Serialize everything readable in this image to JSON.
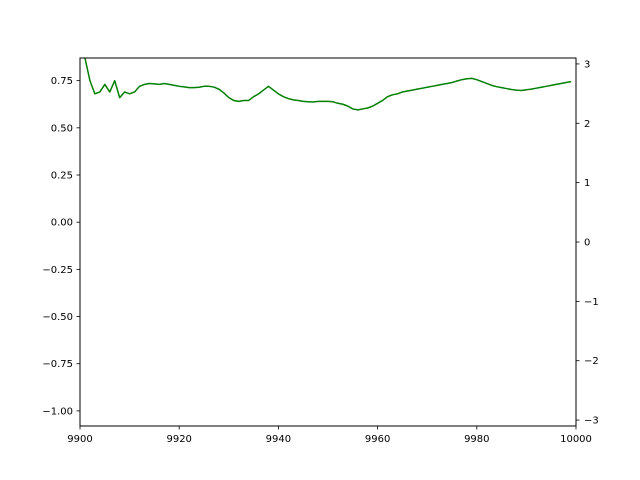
{
  "chart_data": {
    "type": "line",
    "title": "",
    "xlabel": "",
    "ylabel": "",
    "xlim": [
      9900,
      10000
    ],
    "ylim_left": [
      -1.08,
      0.87
    ],
    "ylim_right": [
      -3.1,
      3.1
    ],
    "x_ticks": [
      9900,
      9920,
      9940,
      9960,
      9980,
      10000
    ],
    "x_tick_labels": [
      "9900",
      "9920",
      "9940",
      "9960",
      "9980",
      "10000"
    ],
    "y_left_ticks": [
      0.75,
      0.5,
      0.25,
      0.0,
      -0.25,
      -0.5,
      -0.75,
      -1.0
    ],
    "y_left_tick_labels": [
      "0.75",
      "0.50",
      "0.25",
      "0.00",
      "−0.25",
      "−0.50",
      "−0.75",
      "−1.00"
    ],
    "y_right_ticks": [
      3,
      2,
      1,
      0,
      -1,
      -2,
      -3
    ],
    "y_right_tick_labels": [
      "3",
      "2",
      "1",
      "0",
      "−1",
      "−2",
      "−3"
    ],
    "grid": false,
    "series": [
      {
        "axis": "left",
        "color": "#008000",
        "x": [
          9900,
          9901,
          9902,
          9903,
          9904,
          9905,
          9906,
          9907,
          9908,
          9909,
          9910,
          9911,
          9912,
          9913,
          9914,
          9915,
          9916,
          9917,
          9918,
          9919,
          9920,
          9921,
          9922,
          9923,
          9924,
          9925,
          9926,
          9927,
          9928,
          9929,
          9930,
          9931,
          9932,
          9933,
          9934,
          9935,
          9936,
          9937,
          9938,
          9939,
          9940,
          9941,
          9942,
          9943,
          9944,
          9945,
          9946,
          9947,
          9948,
          9949,
          9950,
          9951,
          9952,
          9953,
          9954,
          9955,
          9956,
          9957,
          9958,
          9959,
          9960,
          9961,
          9962,
          9963,
          9964,
          9965,
          9966,
          9967,
          9968,
          9969,
          9970,
          9971,
          9972,
          9973,
          9974,
          9975,
          9976,
          9977,
          9978,
          9979,
          9980,
          9981,
          9982,
          9983,
          9984,
          9985,
          9986,
          9987,
          9988,
          9989,
          9990,
          9991,
          9992,
          9993,
          9994,
          9995,
          9996,
          9997,
          9998,
          9999
        ],
        "y": [
          0.88,
          0.87,
          0.75,
          0.68,
          0.69,
          0.73,
          0.69,
          0.75,
          0.66,
          0.69,
          0.68,
          0.69,
          0.72,
          0.73,
          0.735,
          0.733,
          0.73,
          0.735,
          0.73,
          0.725,
          0.72,
          0.717,
          0.713,
          0.713,
          0.715,
          0.72,
          0.72,
          0.716,
          0.705,
          0.685,
          0.66,
          0.645,
          0.64,
          0.645,
          0.645,
          0.665,
          0.68,
          0.7,
          0.72,
          0.7,
          0.68,
          0.665,
          0.655,
          0.648,
          0.645,
          0.64,
          0.638,
          0.637,
          0.64,
          0.64,
          0.64,
          0.638,
          0.63,
          0.625,
          0.615,
          0.6,
          0.595,
          0.6,
          0.605,
          0.615,
          0.63,
          0.645,
          0.665,
          0.675,
          0.68,
          0.69,
          0.695,
          0.7,
          0.705,
          0.71,
          0.715,
          0.72,
          0.725,
          0.73,
          0.735,
          0.74,
          0.748,
          0.755,
          0.76,
          0.762,
          0.755,
          0.745,
          0.735,
          0.725,
          0.718,
          0.713,
          0.708,
          0.703,
          0.7,
          0.698,
          0.702,
          0.705,
          0.71,
          0.715,
          0.72,
          0.725,
          0.73,
          0.735,
          0.74,
          0.745
        ]
      }
    ]
  }
}
